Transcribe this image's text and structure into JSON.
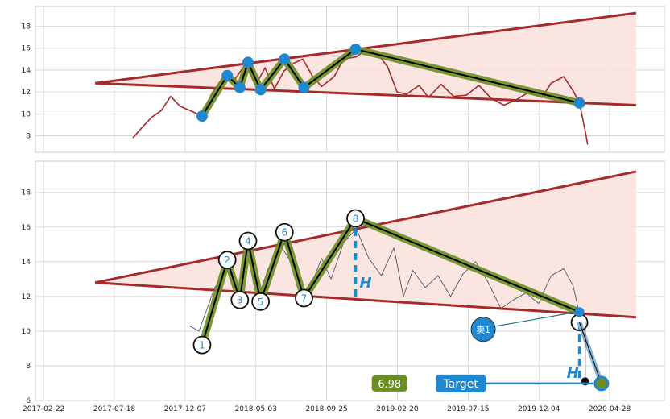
{
  "chart_data": [
    {
      "type": "line",
      "panel": "top",
      "ylim": [
        6.5,
        19.8
      ],
      "yticks": [
        8,
        10,
        12,
        14,
        16,
        18
      ],
      "grid": true,
      "series": [
        {
          "role": "price",
          "color": "#a52a2a",
          "values": [
            [
              0.155,
              7.8
            ],
            [
              0.17,
              8.8
            ],
            [
              0.185,
              9.7
            ],
            [
              0.2,
              10.3
            ],
            [
              0.215,
              11.6
            ],
            [
              0.23,
              10.7
            ],
            [
              0.25,
              10.2
            ],
            [
              0.265,
              9.8
            ],
            [
              0.28,
              11.8
            ],
            [
              0.3,
              13.5
            ],
            [
              0.315,
              13.0
            ],
            [
              0.335,
              14.6
            ],
            [
              0.35,
              12.6
            ],
            [
              0.365,
              14.2
            ],
            [
              0.38,
              12.3
            ],
            [
              0.395,
              13.9
            ],
            [
              0.41,
              14.6
            ],
            [
              0.425,
              15.0
            ],
            [
              0.44,
              13.5
            ],
            [
              0.455,
              12.5
            ],
            [
              0.475,
              13.4
            ],
            [
              0.49,
              15.0
            ],
            [
              0.51,
              15.2
            ],
            [
              0.525,
              15.8
            ],
            [
              0.545,
              15.4
            ],
            [
              0.56,
              14.3
            ],
            [
              0.575,
              12.0
            ],
            [
              0.59,
              11.8
            ],
            [
              0.61,
              12.6
            ],
            [
              0.625,
              11.5
            ],
            [
              0.645,
              12.7
            ],
            [
              0.665,
              11.6
            ],
            [
              0.685,
              11.7
            ],
            [
              0.705,
              12.6
            ],
            [
              0.725,
              11.4
            ],
            [
              0.745,
              10.8
            ],
            [
              0.765,
              11.3
            ],
            [
              0.785,
              12.0
            ],
            [
              0.805,
              11.5
            ],
            [
              0.82,
              12.8
            ],
            [
              0.84,
              13.4
            ],
            [
              0.855,
              12.1
            ],
            [
              0.865,
              11.0
            ],
            [
              0.875,
              8.2
            ],
            [
              0.878,
              7.2
            ]
          ]
        },
        {
          "role": "trend-upper",
          "color": "#a52a2a",
          "values": [
            [
              0.095,
              12.8
            ],
            [
              0.955,
              19.2
            ]
          ]
        },
        {
          "role": "trend-lower",
          "color": "#a52a2a",
          "values": [
            [
              0.095,
              12.8
            ],
            [
              0.955,
              10.8
            ]
          ]
        },
        {
          "role": "zigzag",
          "color": "#6b8e23",
          "values": [
            [
              0.265,
              9.8
            ],
            [
              0.305,
              13.5
            ],
            [
              0.325,
              12.4
            ],
            [
              0.338,
              14.7
            ],
            [
              0.358,
              12.2
            ],
            [
              0.396,
              15.0
            ],
            [
              0.427,
              12.4
            ],
            [
              0.509,
              15.9
            ],
            [
              0.865,
              11.0
            ]
          ]
        }
      ],
      "markers": [
        [
          0.265,
          9.8
        ],
        [
          0.305,
          13.5
        ],
        [
          0.325,
          12.4
        ],
        [
          0.338,
          14.7
        ],
        [
          0.358,
          12.2
        ],
        [
          0.396,
          15.0
        ],
        [
          0.427,
          12.4
        ],
        [
          0.509,
          15.9
        ],
        [
          0.865,
          11.0
        ]
      ]
    },
    {
      "type": "line",
      "panel": "bottom",
      "ylim": [
        6,
        19.8
      ],
      "yticks": [
        6,
        8,
        10,
        12,
        14,
        16,
        18
      ],
      "xticks": [
        "2017-02-22",
        "2017-07-18",
        "2017-12-07",
        "2018-05-03",
        "2018-09-25",
        "2019-02-20",
        "2019-07-15",
        "2019-12-04",
        "2020-04-28"
      ],
      "grid": true,
      "series": [
        {
          "role": "price",
          "color": "#555566",
          "values": [
            [
              0.245,
              10.3
            ],
            [
              0.26,
              10.0
            ],
            [
              0.27,
              11.0
            ],
            [
              0.285,
              12.5
            ],
            [
              0.305,
              13.6
            ],
            [
              0.32,
              12.0
            ],
            [
              0.338,
              14.8
            ],
            [
              0.355,
              12.0
            ],
            [
              0.37,
              13.6
            ],
            [
              0.39,
              14.9
            ],
            [
              0.41,
              13.8
            ],
            [
              0.425,
              12.2
            ],
            [
              0.44,
              12.8
            ],
            [
              0.455,
              14.2
            ],
            [
              0.47,
              13.0
            ],
            [
              0.49,
              15.1
            ],
            [
              0.51,
              15.9
            ],
            [
              0.53,
              14.2
            ],
            [
              0.55,
              13.2
            ],
            [
              0.57,
              14.8
            ],
            [
              0.585,
              12.0
            ],
            [
              0.6,
              13.5
            ],
            [
              0.62,
              12.5
            ],
            [
              0.64,
              13.2
            ],
            [
              0.66,
              12.0
            ],
            [
              0.68,
              13.3
            ],
            [
              0.7,
              14.0
            ],
            [
              0.72,
              12.8
            ],
            [
              0.74,
              11.3
            ],
            [
              0.76,
              11.8
            ],
            [
              0.78,
              12.2
            ],
            [
              0.8,
              11.6
            ],
            [
              0.82,
              13.2
            ],
            [
              0.84,
              13.6
            ],
            [
              0.855,
              12.6
            ],
            [
              0.865,
              11.0
            ]
          ]
        },
        {
          "role": "trend-upper",
          "color": "#a52a2a",
          "values": [
            [
              0.095,
              12.8
            ],
            [
              0.955,
              19.2
            ]
          ]
        },
        {
          "role": "trend-lower",
          "color": "#a52a2a",
          "values": [
            [
              0.095,
              12.8
            ],
            [
              0.955,
              10.8
            ]
          ]
        },
        {
          "role": "zigzag",
          "color": "#6b8e23",
          "values": [
            [
              0.265,
              9.2
            ],
            [
              0.305,
              14.1
            ],
            [
              0.325,
              11.8
            ],
            [
              0.338,
              15.2
            ],
            [
              0.358,
              11.7
            ],
            [
              0.396,
              15.7
            ],
            [
              0.427,
              11.9
            ],
            [
              0.509,
              16.5
            ],
            [
              0.865,
              11.1
            ]
          ]
        }
      ],
      "points": [
        {
          "label": "1",
          "x": 0.265,
          "y": 9.2
        },
        {
          "label": "2",
          "x": 0.305,
          "y": 14.1
        },
        {
          "label": "3",
          "x": 0.325,
          "y": 11.8
        },
        {
          "label": "4",
          "x": 0.338,
          "y": 15.2
        },
        {
          "label": "5",
          "x": 0.358,
          "y": 11.7
        },
        {
          "label": "6",
          "x": 0.396,
          "y": 15.7
        },
        {
          "label": "7",
          "x": 0.427,
          "y": 11.9
        },
        {
          "label": "8",
          "x": 0.509,
          "y": 16.5
        }
      ],
      "height_label": "H",
      "sell_label": "卖1",
      "target_label": "Target",
      "target_value": "6.98",
      "target_point": [
        0.9,
        6.98
      ],
      "breakout_point": [
        0.865,
        10.5
      ]
    }
  ],
  "colors": {
    "trend": "#a52a2a",
    "fill": "#f9e0dc",
    "zigzag": "#6b8e23",
    "marker": "#1e88d0",
    "grid": "#d0d0d0",
    "value_box": "#6b8e23"
  }
}
